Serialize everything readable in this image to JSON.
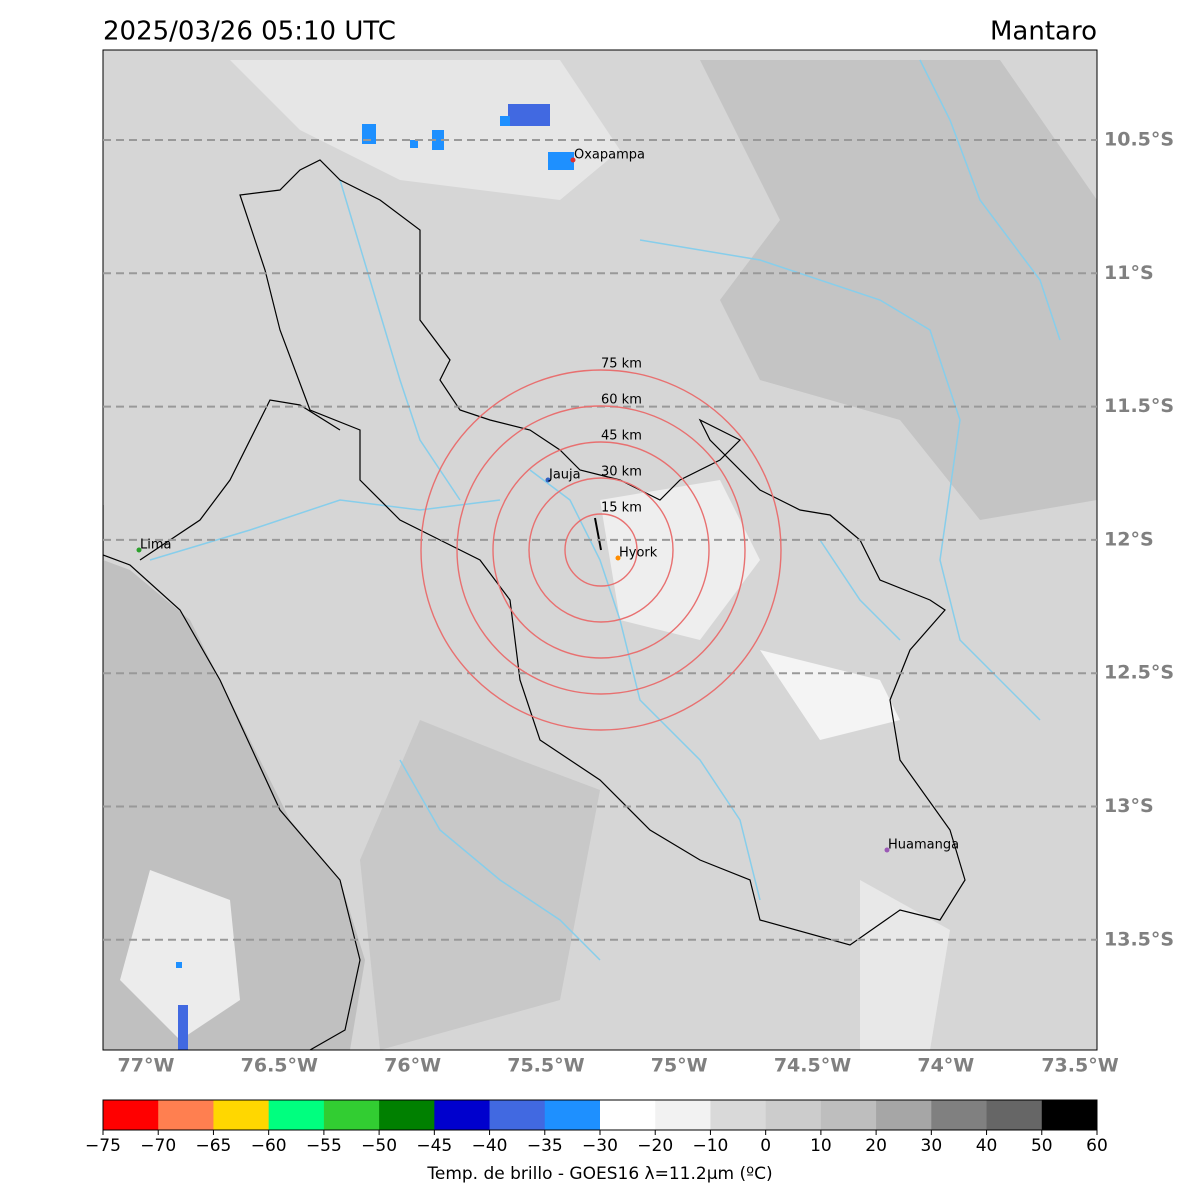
{
  "header": {
    "datetime": "2025/03/26 05:10 UTC",
    "region": "Mantaro"
  },
  "map": {
    "lat_labels": [
      "10.5°S",
      "11°S",
      "11.5°S",
      "12°S",
      "12.5°S",
      "13°S",
      "13.5°S"
    ],
    "lon_labels": [
      "77°W",
      "76.5°W",
      "76°W",
      "75.5°W",
      "75°W",
      "74.5°W",
      "74°W",
      "73.5°W"
    ],
    "cities": [
      "Oxapampa",
      "Jauja",
      "Hyork",
      "Lima",
      "Huamanga"
    ],
    "rings": [
      "15 km",
      "30 km",
      "45 km",
      "60 km",
      "75 km"
    ]
  },
  "colorbar": {
    "label": "Temp. de brillo - GOES16 λ=11.2μm (ºC)",
    "ticks": [
      {
        "value": -75,
        "label": "−75"
      },
      {
        "value": -70,
        "label": "−70"
      },
      {
        "value": -65,
        "label": "−65"
      },
      {
        "value": -60,
        "label": "−60"
      },
      {
        "value": -55,
        "label": "−55"
      },
      {
        "value": -50,
        "label": "−50"
      },
      {
        "value": -45,
        "label": "−45"
      },
      {
        "value": -40,
        "label": "−40"
      },
      {
        "value": -35,
        "label": "−35"
      },
      {
        "value": -30,
        "label": "−30"
      },
      {
        "value": -20,
        "label": "−20"
      },
      {
        "value": -10,
        "label": "−10"
      },
      0,
      10,
      20,
      30,
      40,
      50,
      60
    ],
    "colors": [
      "#ff0000",
      "#ff7f50",
      "#ffd700",
      "#00ff7f",
      "#32cd32",
      "#008000",
      "#0000cd",
      "#4169e1",
      "#1e90ff",
      "#ffffff",
      "#f2f2f2",
      "#d9d9d9",
      "#cccccc",
      "#bebebe",
      "#a6a6a6",
      "#808080",
      "#666666",
      "#000000"
    ]
  }
}
